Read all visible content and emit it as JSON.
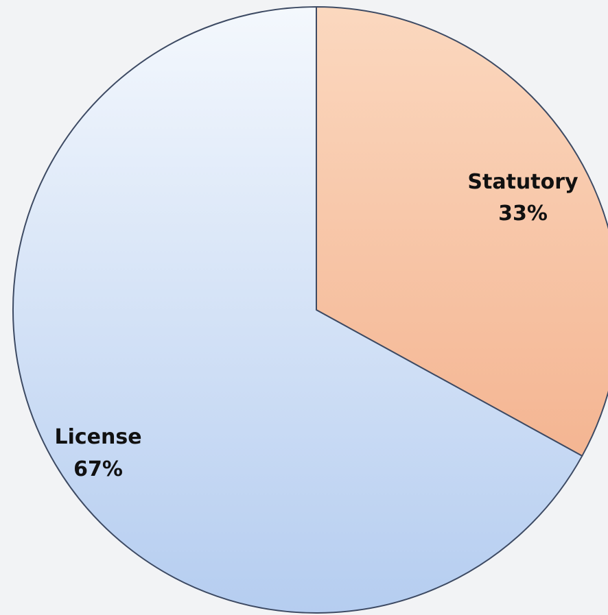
{
  "chart_data": {
    "type": "pie",
    "title": "",
    "start_angle_deg": 0,
    "direction": "clockwise",
    "slices": [
      {
        "label": "Statutory",
        "value": 33,
        "percent_text": "33%",
        "color": "#f7c4a2"
      },
      {
        "label": "License",
        "value": 67,
        "percent_text": "67%",
        "color": "#c8d9f3"
      }
    ]
  },
  "colors": {
    "background": "#f2f3f5",
    "statutory_fill_light": "#fbd8bf",
    "statutory_fill_dark": "#f4b592",
    "license_fill_light": "#f4f8fd",
    "license_fill_dark": "#b5cdf0",
    "outline": "#3d4a63"
  }
}
